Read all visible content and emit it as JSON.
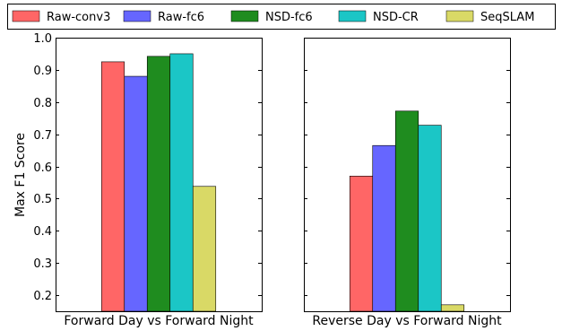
{
  "chart_data": {
    "type": "bar",
    "ylabel": "Max F1 Score",
    "ylim": [
      0.15,
      1.0
    ],
    "yticks": [
      "0.2",
      "0.3",
      "0.4",
      "0.5",
      "0.6",
      "0.7",
      "0.8",
      "0.9",
      "1.0"
    ],
    "grid": false,
    "legend_position": "top",
    "legend": [
      {
        "name": "Raw-conv3",
        "color": "#ff6666"
      },
      {
        "name": "Raw-fc6",
        "color": "#6666ff"
      },
      {
        "name": "NSD-fc6",
        "color": "#1f8c1f"
      },
      {
        "name": "NSD-CR",
        "color": "#1bc6c6"
      },
      {
        "name": "SeqSLAM",
        "color": "#d9d966"
      }
    ],
    "panels": [
      {
        "category": "Forward Day vs Forward Night",
        "series": [
          {
            "name": "Raw-conv3",
            "value": 0.925
          },
          {
            "name": "Raw-fc6",
            "value": 0.88
          },
          {
            "name": "NSD-fc6",
            "value": 0.942
          },
          {
            "name": "NSD-CR",
            "value": 0.95
          },
          {
            "name": "SeqSLAM",
            "value": 0.538
          }
        ]
      },
      {
        "category": "Reverse Day vs Forward Night",
        "series": [
          {
            "name": "Raw-conv3",
            "value": 0.57
          },
          {
            "name": "Raw-fc6",
            "value": 0.665
          },
          {
            "name": "NSD-fc6",
            "value": 0.772
          },
          {
            "name": "NSD-CR",
            "value": 0.728
          },
          {
            "name": "SeqSLAM",
            "value": 0.17
          }
        ]
      }
    ]
  }
}
